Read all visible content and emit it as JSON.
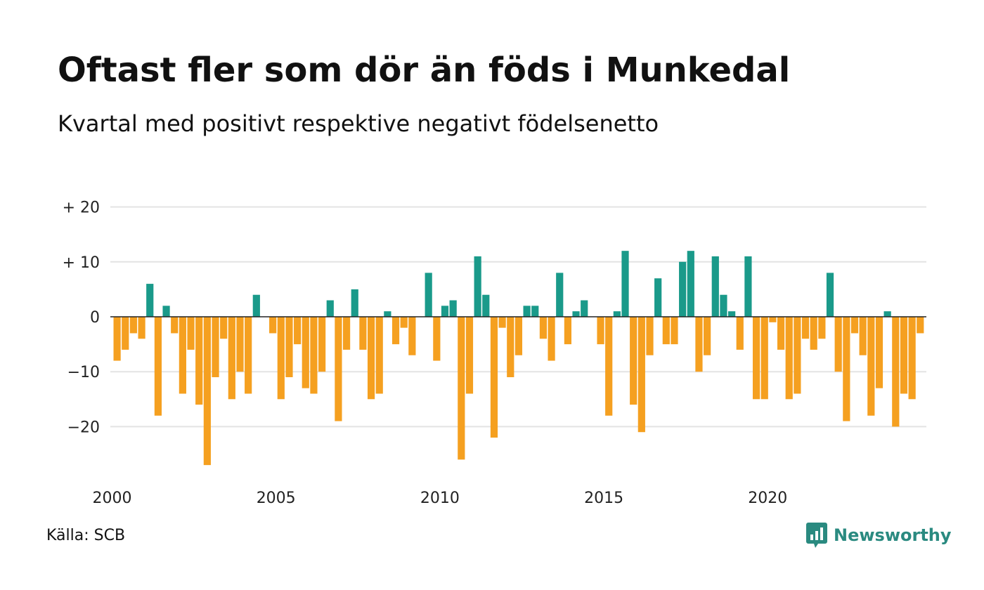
{
  "title": "Oftast fler som dör än föds i Munkedal",
  "subtitle": "Kvartal med positivt respektive negativt födelsenetto",
  "source": "Källa: SCB",
  "brand": {
    "name": "Newsworthy",
    "icon": "newsworthy-logo-icon",
    "color": "#2a8a80"
  },
  "colors": {
    "positive": "#1a9a8a",
    "negative": "#f5a020",
    "grid": "#e3e3e3",
    "zero_line": "#222222"
  },
  "chart_data": {
    "type": "bar",
    "x_start_year": 2000,
    "periods_per_year": 4,
    "ylim": [
      -28,
      21
    ],
    "yticks": [
      20,
      10,
      0,
      -10,
      -20
    ],
    "ytick_labels": [
      "+ 20",
      "+ 10",
      "0",
      "−10",
      "−20"
    ],
    "xticks": [
      2000,
      2005,
      2010,
      2015,
      2020
    ],
    "xtick_labels": [
      "2000",
      "2005",
      "2010",
      "2015",
      "2020"
    ],
    "grid": true,
    "values": [
      -8,
      -6,
      -3,
      -4,
      6,
      -18,
      2,
      -3,
      -14,
      -6,
      -16,
      -27,
      -11,
      -4,
      -15,
      -10,
      -14,
      4,
      0,
      -3,
      -15,
      -11,
      -5,
      -13,
      -14,
      -10,
      3,
      -19,
      -6,
      5,
      -6,
      -15,
      -14,
      1,
      -5,
      -2,
      -7,
      0,
      8,
      -8,
      2,
      3,
      -26,
      -14,
      11,
      4,
      -22,
      -2,
      -11,
      -7,
      2,
      2,
      -4,
      -8,
      8,
      -5,
      1,
      3,
      0,
      -5,
      -18,
      1,
      12,
      -16,
      -21,
      -7,
      7,
      -5,
      -5,
      10,
      12,
      -10,
      -7,
      11,
      4,
      1,
      -6,
      11,
      -15,
      -15,
      -1,
      -6,
      -15,
      -14,
      -4,
      -6,
      -4,
      8,
      -10,
      -19,
      -3,
      -7,
      -18,
      -13,
      1,
      -20,
      -14,
      -15,
      -3
    ]
  }
}
